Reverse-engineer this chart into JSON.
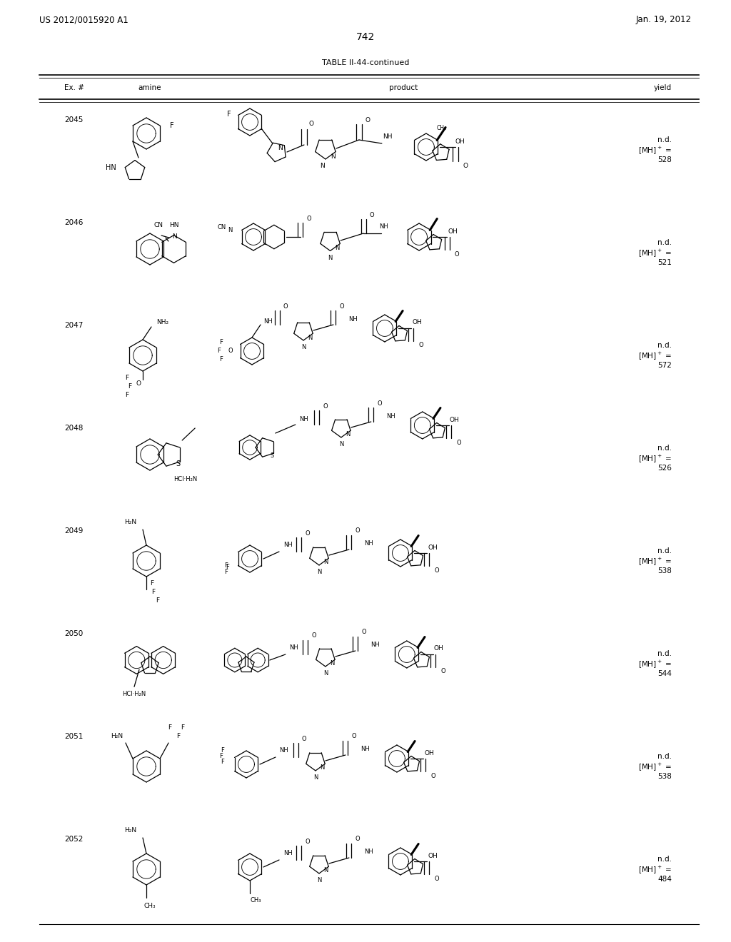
{
  "page_number": "742",
  "patent_number": "US 2012/0015920 A1",
  "patent_date": "Jan. 19, 2012",
  "table_title": "TABLE II-44-continued",
  "col_headers": [
    "Ex. #",
    "amine",
    "product",
    "yield"
  ],
  "rows": [
    {
      "ex": "2045",
      "yield_text": "n.d.\n[MH]+ =\n528"
    },
    {
      "ex": "2046",
      "yield_text": "n.d.\n[MH]+ =\n521"
    },
    {
      "ex": "2047",
      "yield_text": "n.d.\n[MH]+ =\n572"
    },
    {
      "ex": "2048",
      "yield_text": "n.d.\n[MH]+ =\n526"
    },
    {
      "ex": "2049",
      "yield_text": "n.d.\n[MH]+ =\n538"
    },
    {
      "ex": "2050",
      "yield_text": "n.d.\n[MH]+ =\n544"
    },
    {
      "ex": "2051",
      "yield_text": "n.d.\n[MH]+ =\n538"
    },
    {
      "ex": "2052",
      "yield_text": "n.d.\n[MH]+ =\n484"
    }
  ],
  "bg": "#ffffff",
  "fg": "#000000",
  "fig_w": 10.24,
  "fig_h": 13.2,
  "dpi": 100
}
